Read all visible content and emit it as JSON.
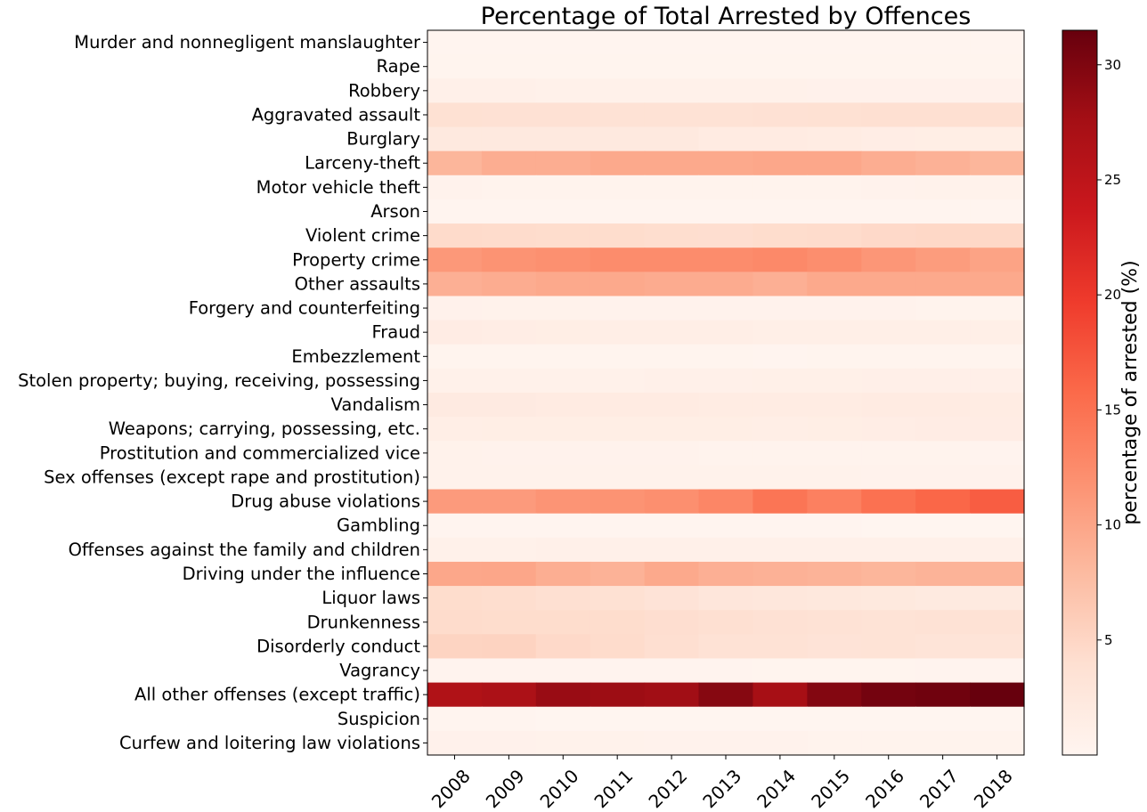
{
  "chart_data": {
    "type": "heatmap",
    "title": "Percentage of Total Arrested by Offences",
    "x": [
      "2008",
      "2009",
      "2010",
      "2011",
      "2012",
      "2013",
      "2014",
      "2015",
      "2016",
      "2017",
      "2018"
    ],
    "y": [
      "Murder and nonnegligent manslaughter",
      "Rape",
      "Robbery",
      "Aggravated assault",
      "Burglary",
      "Larceny-theft",
      "Motor vehicle theft",
      "Arson",
      "Violent crime",
      "Property crime",
      "Other assaults",
      "Forgery and counterfeiting",
      "Fraud",
      "Embezzlement",
      "Stolen property; buying, receiving, possessing",
      "Vandalism",
      "Weapons; carrying, possessing, etc.",
      "Prostitution and commercialized vice",
      "Sex offenses (except rape and prostitution)",
      "Drug abuse violations",
      "Gambling",
      "Offenses against the family and children",
      "Driving under the influence",
      "Liquor laws",
      "Drunkenness",
      "Disorderly conduct",
      "Vagrancy",
      "All other offenses (except traffic)",
      "Suspicion",
      "Curfew and loitering law violations"
    ],
    "values": [
      [
        0.1,
        0.1,
        0.1,
        0.1,
        0.1,
        0.1,
        0.1,
        0.1,
        0.1,
        0.1,
        0.1
      ],
      [
        0.2,
        0.2,
        0.2,
        0.2,
        0.2,
        0.2,
        0.2,
        0.2,
        0.2,
        0.2,
        0.2
      ],
      [
        0.9,
        0.9,
        0.8,
        0.8,
        0.8,
        0.8,
        0.8,
        0.7,
        0.7,
        0.7,
        0.7
      ],
      [
        3.8,
        3.7,
        3.7,
        3.6,
        3.6,
        3.6,
        3.7,
        3.8,
        3.9,
        3.9,
        3.9
      ],
      [
        2.2,
        2.2,
        2.2,
        2.2,
        2.2,
        1.9,
        1.9,
        1.7,
        1.5,
        1.4,
        1.4
      ],
      [
        8.4,
        9.2,
        9.2,
        9.6,
        9.6,
        9.6,
        9.8,
        9.8,
        9.2,
        8.8,
        8.4
      ],
      [
        0.5,
        0.4,
        0.4,
        0.4,
        0.4,
        0.4,
        0.4,
        0.4,
        0.5,
        0.6,
        0.6
      ],
      [
        0.1,
        0.1,
        0.1,
        0.1,
        0.1,
        0.1,
        0.1,
        0.1,
        0.1,
        0.1,
        0.1
      ],
      [
        4.5,
        4.4,
        4.3,
        4.3,
        4.2,
        4.1,
        4.3,
        4.4,
        4.7,
        4.8,
        4.8
      ],
      [
        11.2,
        11.7,
        12.0,
        12.4,
        12.4,
        12.4,
        12.7,
        12.2,
        11.4,
        10.9,
        10.2
      ],
      [
        9.0,
        9.3,
        9.6,
        9.6,
        9.4,
        9.4,
        9.0,
        9.6,
        9.6,
        9.6,
        9.6
      ],
      [
        0.7,
        0.6,
        0.6,
        0.5,
        0.5,
        0.5,
        0.5,
        0.5,
        0.5,
        0.4,
        0.4
      ],
      [
        1.6,
        1.5,
        1.4,
        1.3,
        1.3,
        1.3,
        1.2,
        1.2,
        1.2,
        1.2,
        1.2
      ],
      [
        0.2,
        0.2,
        0.2,
        0.2,
        0.2,
        0.2,
        0.1,
        0.2,
        0.2,
        0.2,
        0.2
      ],
      [
        0.8,
        0.8,
        0.8,
        0.8,
        0.9,
        0.9,
        1.0,
        1.0,
        1.1,
        1.1,
        1.1
      ],
      [
        2.0,
        2.0,
        1.9,
        1.9,
        1.8,
        1.7,
        1.7,
        1.7,
        1.8,
        1.8,
        1.7
      ],
      [
        1.3,
        1.4,
        1.4,
        1.4,
        1.4,
        1.4,
        1.3,
        1.4,
        1.5,
        1.6,
        1.6
      ],
      [
        0.6,
        0.5,
        0.5,
        0.5,
        0.5,
        0.4,
        0.4,
        0.4,
        0.4,
        0.4,
        0.3
      ],
      [
        0.6,
        0.6,
        0.6,
        0.6,
        0.6,
        0.6,
        0.6,
        0.6,
        0.5,
        0.5,
        0.5
      ],
      [
        11.0,
        11.0,
        11.6,
        11.7,
        12.1,
        13.0,
        14.7,
        13.6,
        15.1,
        16.0,
        16.8
      ],
      [
        0.1,
        0.1,
        0.1,
        0.1,
        0.1,
        0.1,
        0.1,
        0.1,
        0.0,
        0.0,
        0.0
      ],
      [
        0.8,
        0.8,
        0.9,
        0.9,
        0.9,
        0.9,
        0.9,
        0.9,
        0.9,
        0.9,
        0.9
      ],
      [
        9.8,
        9.9,
        9.1,
        8.7,
        9.6,
        9.0,
        8.8,
        8.6,
        8.4,
        8.6,
        8.6
      ],
      [
        4.3,
        4.2,
        3.9,
        3.8,
        3.3,
        2.8,
        2.6,
        2.5,
        2.3,
        2.1,
        2.1
      ],
      [
        4.4,
        4.3,
        4.3,
        4.3,
        4.1,
        3.9,
        3.7,
        3.6,
        3.4,
        3.6,
        3.6
      ],
      [
        5.2,
        5.3,
        4.7,
        4.4,
        4.0,
        3.6,
        3.5,
        3.3,
        3.4,
        3.1,
        3.1
      ],
      [
        0.3,
        0.3,
        0.3,
        0.3,
        0.3,
        0.3,
        0.2,
        0.2,
        0.2,
        0.3,
        0.3
      ],
      [
        26.4,
        26.8,
        28.3,
        28.1,
        27.8,
        29.5,
        27.4,
        29.7,
        30.7,
        30.9,
        31.5
      ],
      [
        0.1,
        0.1,
        0.0,
        0.0,
        0.0,
        0.0,
        0.0,
        0.0,
        0.0,
        0.0,
        0.0
      ],
      [
        0.7,
        0.7,
        0.6,
        0.6,
        0.5,
        0.5,
        0.5,
        0.4,
        0.4,
        0.4,
        0.4
      ]
    ],
    "colormap": "Reds",
    "colorbar": {
      "label": "percentage of arrested  (%)",
      "range": [
        0,
        31.5
      ],
      "ticks": [
        5,
        10,
        15,
        20,
        25,
        30
      ]
    },
    "grid": false,
    "xtick_rotation_deg": 45
  }
}
